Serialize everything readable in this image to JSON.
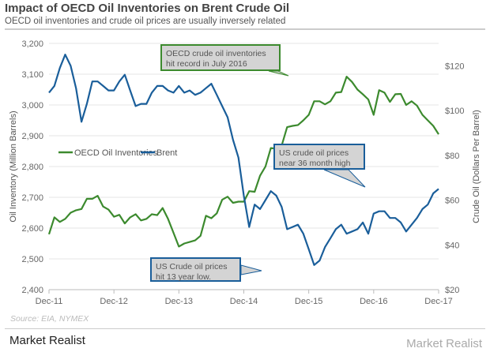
{
  "title": "Impact of OECD Oil Inventories on Brent Crude Oil",
  "subtitle": "OECD oil inventories and crude oil prices are usually inversely related",
  "source": "Source: EIA, NYMEX",
  "brand": "Market Realist",
  "chart_data": {
    "type": "line",
    "x_tick_labels": [
      "Dec-11",
      "Dec-12",
      "Dec-13",
      "Dec-14",
      "Dec-15",
      "Dec-16",
      "Dec-17"
    ],
    "x_range": [
      "Dec-11",
      "Dec-17"
    ],
    "ylabel_left": "Oil Inventory (Million Barrels)",
    "ylabel_right": "Crude Oil (Dollars Per Barrel)",
    "ylim_left": [
      2400,
      3200
    ],
    "ylim_right": [
      20,
      130
    ],
    "yticks_left": [
      "2,400",
      "2,500",
      "2,600",
      "2,700",
      "2,800",
      "2,900",
      "3,000",
      "3,100",
      "3,200"
    ],
    "yticks_right": [
      "$20",
      "$40",
      "$60",
      "$80",
      "$100",
      "$120"
    ],
    "grid": "horizontal",
    "legend_placement": "center-left",
    "series": [
      {
        "name": "OECD Oil Inventories",
        "axis": "left",
        "color": "#3c8a2e",
        "values": [
          2580,
          2635,
          2620,
          2630,
          2650,
          2658,
          2662,
          2695,
          2695,
          2705,
          2670,
          2660,
          2637,
          2643,
          2615,
          2635,
          2645,
          2625,
          2630,
          2645,
          2642,
          2665,
          2630,
          2585,
          2540,
          2550,
          2555,
          2560,
          2575,
          2640,
          2632,
          2648,
          2692,
          2702,
          2682,
          2686,
          2686,
          2720,
          2718,
          2770,
          2800,
          2860,
          2858,
          2868,
          2928,
          2932,
          2935,
          2950,
          2968,
          3012,
          3012,
          3002,
          3012,
          3040,
          3042,
          3092,
          3075,
          3050,
          3035,
          3018,
          2968,
          3048,
          3040,
          3010,
          3035,
          3036,
          3000,
          3012,
          2998,
          2968,
          2950,
          2932,
          2905
        ]
      },
      {
        "name": "Brent",
        "axis": "right",
        "color": "#1a5e9a",
        "values": [
          108,
          111,
          119,
          125,
          120,
          110,
          95,
          103,
          113,
          113,
          111,
          109,
          109,
          113,
          116,
          109,
          102,
          103,
          103,
          108,
          111,
          111,
          109,
          108,
          111,
          108,
          109,
          107,
          108,
          110,
          112,
          107,
          102,
          97,
          87,
          79,
          62,
          48,
          58,
          56,
          60,
          64,
          62,
          57,
          47,
          48,
          49,
          45,
          38,
          31,
          33,
          39,
          43,
          47,
          49,
          45,
          46,
          47,
          50,
          45,
          54,
          55,
          55,
          52,
          52,
          50,
          46,
          49,
          52,
          56,
          58,
          63,
          65
        ]
      }
    ],
    "annotations": [
      {
        "text": "OECD crude oil inventories hit  record in July 2016",
        "border": "#3c8a2e"
      },
      {
        "text": "US crude oil prices  near  36 month high",
        "border": "#1a5e9a"
      },
      {
        "text": "US Crude oil prices hit 13 year low.",
        "border": "#1a5e9a"
      }
    ]
  }
}
